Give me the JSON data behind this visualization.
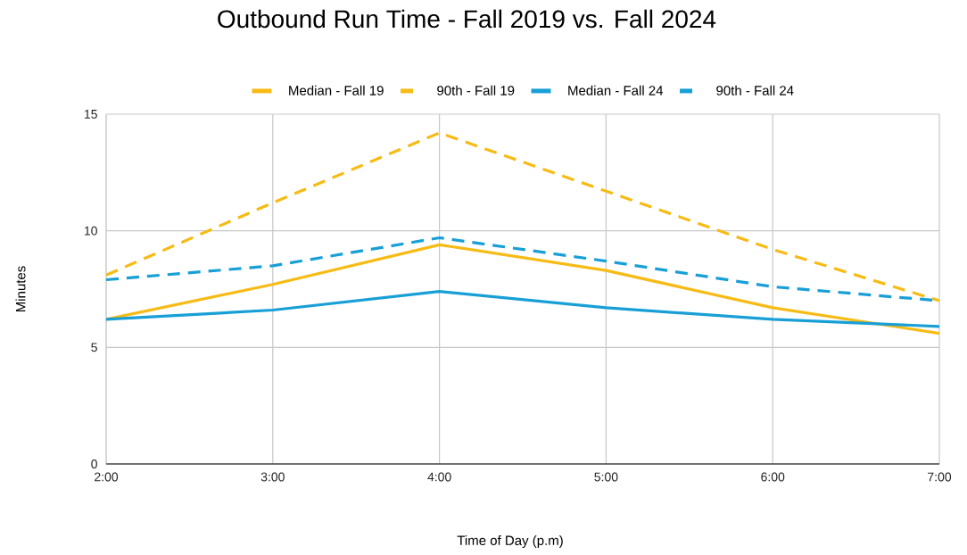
{
  "chart_data": {
    "type": "line",
    "title": "Outbound Run Time - Fall 2019 vs. Fall 2024",
    "xlabel": "Time of Day (p.m)",
    "ylabel": "Minutes",
    "categories": [
      "2:00",
      "3:00",
      "4:00",
      "5:00",
      "6:00",
      "7:00"
    ],
    "series": [
      {
        "name": "Median - Fall 19",
        "color": "#f7bb16",
        "line_style": "solid",
        "values": [
          6.2,
          7.7,
          9.4,
          8.3,
          6.7,
          5.6
        ]
      },
      {
        "name": "90th - Fall 19",
        "color": "#f7bb16",
        "line_style": "dashed",
        "values": [
          8.1,
          11.2,
          14.2,
          11.7,
          9.2,
          7.0
        ]
      },
      {
        "name": "Median - Fall 24",
        "color": "#189fd6",
        "line_style": "solid",
        "values": [
          6.2,
          6.6,
          7.4,
          6.7,
          6.2,
          5.9
        ]
      },
      {
        "name": "90th - Fall 24",
        "color": "#189fd6",
        "line_style": "dashed",
        "values": [
          7.9,
          8.5,
          9.7,
          8.7,
          7.6,
          7.0
        ]
      }
    ],
    "ylim": [
      0,
      15
    ],
    "yticks": [
      0,
      5,
      10,
      15
    ],
    "grid": true,
    "legend": "top"
  }
}
